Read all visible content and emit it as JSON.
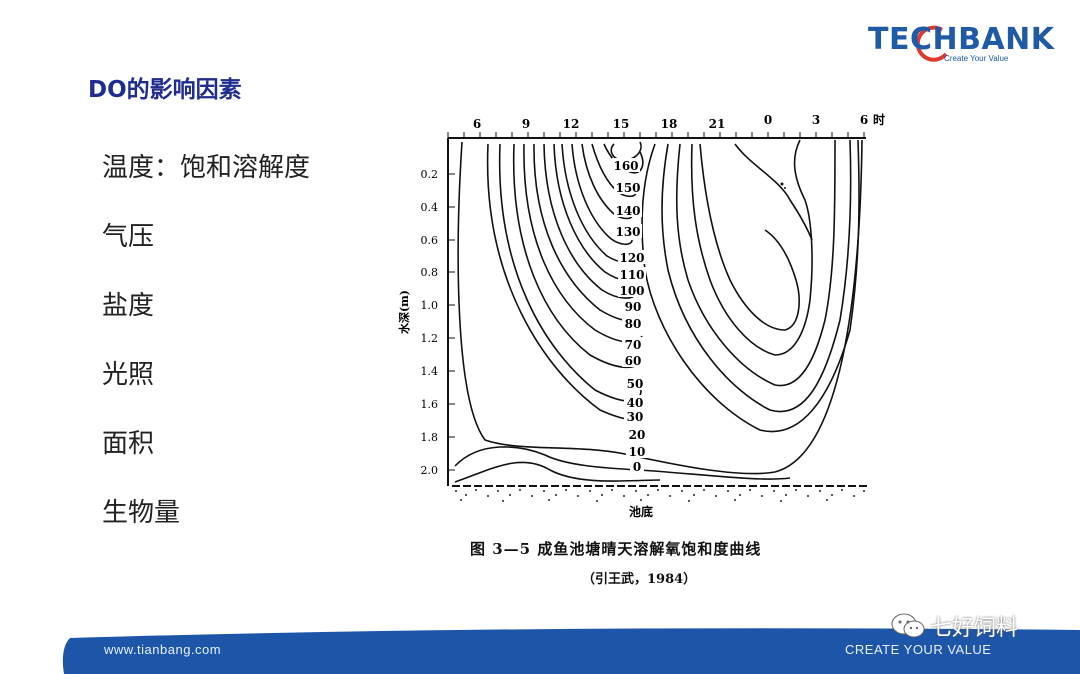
{
  "logo": {
    "text": "TECHBANK",
    "tagline": "Create Your Value"
  },
  "slide": {
    "title": "DO的影响因素",
    "factors": [
      "温度：饱和溶解度",
      "气压",
      "盐度",
      "光照",
      "面积",
      "生物量"
    ]
  },
  "figure": {
    "top_axis_ticks": [
      "6",
      "9",
      "12",
      "15",
      "18",
      "21",
      "0",
      "3",
      "6"
    ],
    "top_axis_unit": "时",
    "y_axis_label": "水深(m)",
    "y_ticks": [
      "0.2",
      "0.4",
      "0.6",
      "0.8",
      "1.0",
      "1.2",
      "1.4",
      "1.6",
      "1.8",
      "2.0"
    ],
    "contour_labels": [
      "160",
      "150",
      "140",
      "130",
      "120",
      "110",
      "100",
      "90",
      "80",
      "70",
      "60",
      "50",
      "40",
      "30",
      "20",
      "10",
      "0"
    ],
    "bottom_label": "池底",
    "caption": "图 3—5  成鱼池塘晴天溶解氧饱和度曲线",
    "citation": "（引王武，1984）"
  },
  "footer": {
    "url": "www.tianbang.com",
    "slogan": "CREATE YOUR VALUE",
    "watermark": "七好饲料",
    "band_color": "#1d56a8"
  },
  "colors": {
    "title": "#1e2d8f",
    "brand": "#1f5aa6"
  }
}
